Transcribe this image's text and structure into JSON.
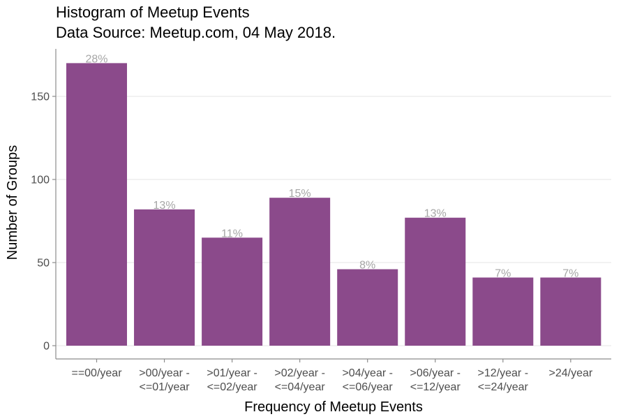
{
  "chart_data": {
    "type": "bar",
    "title": "Histogram of Meetup Events",
    "subtitle": "Data Source: Meetup.com, 04 May 2018.",
    "xlabel": "Frequency of Meetup Events",
    "ylabel": "Number of Groups",
    "categories": [
      [
        "==00/year"
      ],
      [
        ">00/year -",
        "<=01/year"
      ],
      [
        ">01/year -",
        "<=02/year"
      ],
      [
        ">02/year -",
        "<=04/year"
      ],
      [
        ">04/year -",
        "<=06/year"
      ],
      [
        ">06/year -",
        "<=12/year"
      ],
      [
        ">12/year -",
        "<=24/year"
      ],
      [
        ">24/year"
      ]
    ],
    "values": [
      170,
      82,
      65,
      89,
      46,
      77,
      41,
      41
    ],
    "labels": [
      "28%",
      "13%",
      "11%",
      "15%",
      "8%",
      "13%",
      "7%",
      "7%"
    ],
    "ylim": [
      0,
      180
    ],
    "yticks": [
      0,
      50,
      100,
      150
    ],
    "grid": true,
    "colors": {
      "bar": "#8b4a8b",
      "bar_label": "#a6a6a6",
      "grid": "#ebebeb",
      "axis": "#8c8c8c"
    }
  }
}
